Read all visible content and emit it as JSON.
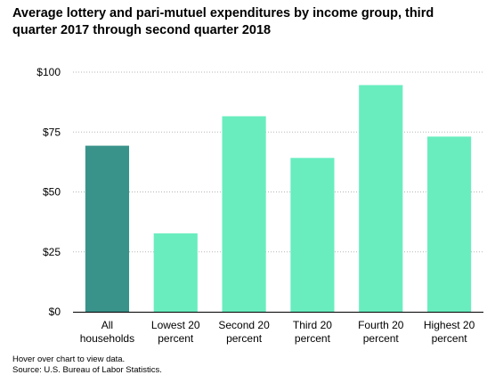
{
  "chart_data": {
    "type": "bar",
    "title": "Average lottery and pari-mutuel expenditures by income group, third quarter 2017 through second quarter 2018",
    "xlabel": "",
    "ylabel": "",
    "ylim": [
      0,
      100
    ],
    "yticks": [
      0,
      25,
      50,
      75,
      100
    ],
    "ytick_labels": [
      "$0",
      "$25",
      "$50",
      "$75",
      "$100"
    ],
    "categories": [
      [
        "All",
        "households"
      ],
      [
        "Lowest 20",
        "percent"
      ],
      [
        "Second 20",
        "percent"
      ],
      [
        "Third 20",
        "percent"
      ],
      [
        "Fourth 20",
        "percent"
      ],
      [
        "Highest 20",
        "percent"
      ]
    ],
    "values": [
      69.3,
      32.7,
      81.6,
      64.2,
      94.6,
      73.1
    ],
    "bar_colors": [
      "#3a938b",
      "#69edbf",
      "#69edbf",
      "#69edbf",
      "#69edbf",
      "#69edbf"
    ],
    "grid": "horizontal-dotted",
    "legend": "none"
  },
  "notes": {
    "hover": "Hover over chart to view data.",
    "source": "Source: U.S. Bureau of Labor Statistics."
  }
}
